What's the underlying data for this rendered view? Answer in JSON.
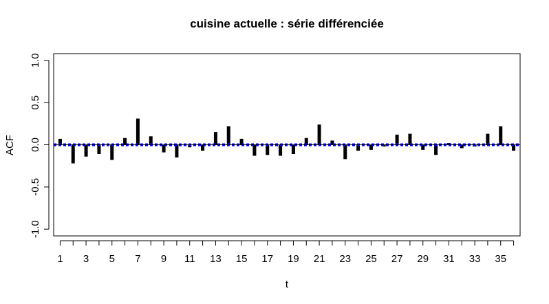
{
  "chart_data": {
    "type": "bar",
    "title": "cuisine actuelle : série différenciée",
    "xlabel": "t",
    "ylabel": "ACF",
    "xlim": [
      0.5,
      36.5
    ],
    "ylim": [
      -1.08,
      1.08
    ],
    "x": [
      1,
      2,
      3,
      4,
      5,
      6,
      7,
      8,
      9,
      10,
      11,
      12,
      13,
      14,
      15,
      16,
      17,
      18,
      19,
      20,
      21,
      22,
      23,
      24,
      25,
      26,
      27,
      28,
      29,
      30,
      31,
      32,
      33,
      34,
      35,
      36
    ],
    "values": [
      0.07,
      -0.22,
      -0.14,
      -0.11,
      -0.18,
      0.08,
      0.31,
      0.1,
      -0.09,
      -0.15,
      -0.03,
      -0.07,
      0.15,
      0.22,
      0.07,
      -0.13,
      -0.12,
      -0.13,
      -0.11,
      0.08,
      0.24,
      0.05,
      -0.17,
      -0.07,
      -0.06,
      -0.02,
      0.12,
      0.13,
      -0.06,
      -0.12,
      0.02,
      -0.04,
      -0.02,
      0.13,
      0.22,
      -0.07
    ],
    "x_ticks": [
      1,
      3,
      5,
      7,
      9,
      11,
      13,
      15,
      17,
      19,
      21,
      23,
      25,
      27,
      29,
      31,
      33,
      35
    ],
    "x_tick_labels": [
      "1",
      "3",
      "5",
      "7",
      "9",
      "11",
      "13",
      "15",
      "17",
      "19",
      "21",
      "23",
      "25",
      "27",
      "29",
      "31",
      "33",
      "35"
    ],
    "y_ticks": [
      -1.0,
      -0.5,
      0.0,
      0.5,
      1.0
    ],
    "y_tick_labels": [
      "-1.0",
      "-0.5",
      "0.0",
      "0.5",
      "1.0"
    ],
    "confidence_band": 0.01,
    "bar_color": "#000000",
    "band_color": "#0000ff",
    "zero_line_color": "#000000",
    "grid": false,
    "legend": "none"
  }
}
